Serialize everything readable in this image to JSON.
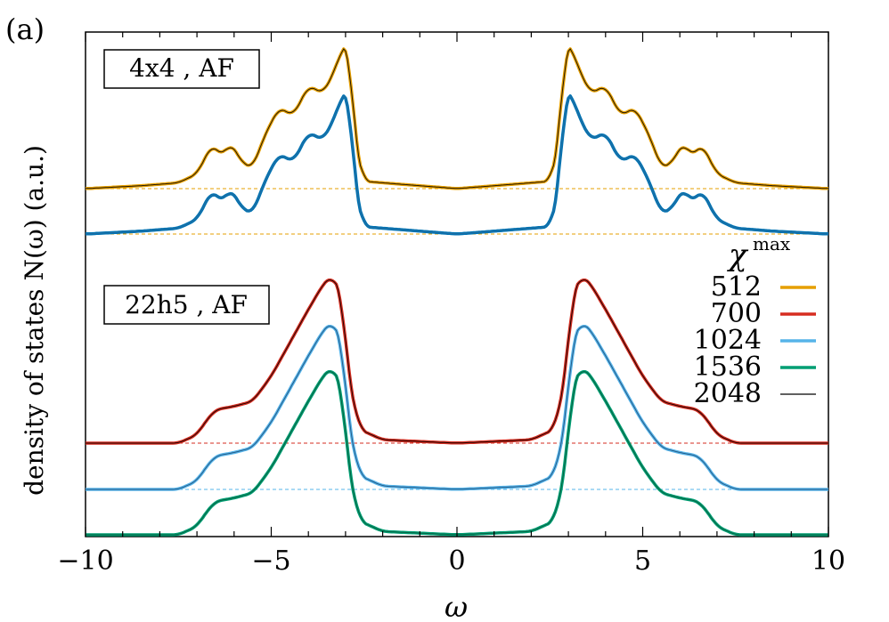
{
  "chart_data": {
    "type": "line",
    "panel_label": "(a)",
    "xlabel": "ω",
    "ylabel": "density of states N(ω) (a.u.)",
    "xlim": [
      -10,
      10
    ],
    "xticks": [
      -10,
      -5,
      0,
      5,
      10
    ],
    "xtick_labels": [
      "−10",
      "−5",
      "0",
      "5",
      "10"
    ],
    "grid": false,
    "legend": {
      "title": "χ",
      "title_sup": "max",
      "placement": "right",
      "entries": [
        {
          "label": "512",
          "color": "#E69F00"
        },
        {
          "label": "700",
          "color": "#D62D20"
        },
        {
          "label": "1024",
          "color": "#56B4E9"
        },
        {
          "label": "1536",
          "color": "#009E73"
        },
        {
          "label": "2048",
          "color": "#000000"
        }
      ]
    },
    "panels": [
      {
        "label": "4x4 , AF",
        "curves": [
          {
            "color": "#E69F00",
            "ref": "#000000",
            "line_color": "#E69F00",
            "baseline_offset": 1.0,
            "peak_pos": 2.85,
            "peak_height": 1.0,
            "gap_edge": 2.7,
            "points": [
              [
                -10,
                0.0
              ],
              [
                -8.5,
                0.02
              ],
              [
                -7.5,
                0.04
              ],
              [
                -7,
                0.1
              ],
              [
                -6.6,
                0.3
              ],
              [
                -6.3,
                0.22
              ],
              [
                -6.1,
                0.32
              ],
              [
                -5.8,
                0.18
              ],
              [
                -5.5,
                0.14
              ],
              [
                -5.2,
                0.35
              ],
              [
                -4.8,
                0.55
              ],
              [
                -4.4,
                0.5
              ],
              [
                -4.0,
                0.7
              ],
              [
                -3.6,
                0.65
              ],
              [
                -3.3,
                0.8
              ],
              [
                -3.1,
                0.95
              ],
              [
                -2.9,
                1.0
              ],
              [
                -2.75,
                0.3
              ],
              [
                -2.5,
                0.05
              ],
              [
                0,
                0.0
              ],
              [
                2.5,
                0.05
              ],
              [
                2.75,
                0.3
              ],
              [
                2.9,
                1.0
              ],
              [
                3.1,
                0.95
              ],
              [
                3.3,
                0.8
              ],
              [
                3.6,
                0.65
              ],
              [
                4.0,
                0.7
              ],
              [
                4.4,
                0.5
              ],
              [
                4.8,
                0.55
              ],
              [
                5.2,
                0.35
              ],
              [
                5.5,
                0.14
              ],
              [
                5.8,
                0.18
              ],
              [
                6.1,
                0.32
              ],
              [
                6.3,
                0.22
              ],
              [
                6.6,
                0.3
              ],
              [
                7,
                0.1
              ],
              [
                7.5,
                0.04
              ],
              [
                8.5,
                0.02
              ],
              [
                10,
                0.0
              ]
            ]
          },
          {
            "color": "#0072B2",
            "ref": "#000000",
            "line_color": "#2C6E9F",
            "baseline_offset": 0.0,
            "points": [
              [
                -10,
                0.0
              ],
              [
                -8.5,
                0.02
              ],
              [
                -7.5,
                0.04
              ],
              [
                -7,
                0.1
              ],
              [
                -6.6,
                0.3
              ],
              [
                -6.3,
                0.22
              ],
              [
                -6.1,
                0.32
              ],
              [
                -5.8,
                0.18
              ],
              [
                -5.5,
                0.14
              ],
              [
                -5.2,
                0.35
              ],
              [
                -4.8,
                0.55
              ],
              [
                -4.4,
                0.5
              ],
              [
                -4.0,
                0.7
              ],
              [
                -3.6,
                0.65
              ],
              [
                -3.3,
                0.8
              ],
              [
                -3.1,
                0.95
              ],
              [
                -2.9,
                1.0
              ],
              [
                -2.75,
                0.3
              ],
              [
                -2.5,
                0.05
              ],
              [
                0,
                0.0
              ],
              [
                2.5,
                0.05
              ],
              [
                2.75,
                0.3
              ],
              [
                2.9,
                1.0
              ],
              [
                3.1,
                0.95
              ],
              [
                3.3,
                0.8
              ],
              [
                3.6,
                0.65
              ],
              [
                4.0,
                0.7
              ],
              [
                4.4,
                0.5
              ],
              [
                4.8,
                0.55
              ],
              [
                5.2,
                0.35
              ],
              [
                5.5,
                0.14
              ],
              [
                5.8,
                0.18
              ],
              [
                6.1,
                0.32
              ],
              [
                6.3,
                0.22
              ],
              [
                6.6,
                0.3
              ],
              [
                7,
                0.1
              ],
              [
                7.5,
                0.04
              ],
              [
                8.5,
                0.02
              ],
              [
                10,
                0.0
              ]
            ]
          }
        ]
      },
      {
        "label": "22h5 , AF",
        "curves": [
          {
            "color": "#D62D20",
            "line_color": "#D62D20",
            "baseline_offset": 2.0,
            "points": [
              [
                -10,
                0.0
              ],
              [
                -7.5,
                0.0
              ],
              [
                -7,
                0.05
              ],
              [
                -6.8,
                0.12
              ],
              [
                -6.5,
                0.2
              ],
              [
                -6.0,
                0.22
              ],
              [
                -5.5,
                0.25
              ],
              [
                -5.0,
                0.4
              ],
              [
                -4.5,
                0.6
              ],
              [
                -4.0,
                0.8
              ],
              [
                -3.6,
                0.95
              ],
              [
                -3.4,
                1.0
              ],
              [
                -3.1,
                0.9
              ],
              [
                -2.95,
                0.45
              ],
              [
                -2.8,
                0.25
              ],
              [
                -2.6,
                0.08
              ],
              [
                -2.0,
                0.02
              ],
              [
                0,
                0.0
              ],
              [
                2.0,
                0.02
              ],
              [
                2.6,
                0.08
              ],
              [
                2.8,
                0.25
              ],
              [
                2.95,
                0.45
              ],
              [
                3.1,
                0.9
              ],
              [
                3.4,
                1.0
              ],
              [
                3.6,
                0.95
              ],
              [
                4.0,
                0.8
              ],
              [
                4.5,
                0.6
              ],
              [
                5.0,
                0.4
              ],
              [
                5.5,
                0.25
              ],
              [
                6.0,
                0.22
              ],
              [
                6.5,
                0.2
              ],
              [
                6.8,
                0.12
              ],
              [
                7,
                0.05
              ],
              [
                7.5,
                0.0
              ],
              [
                10,
                0.0
              ]
            ]
          },
          {
            "color": "#56B4E9",
            "line_color": "#1F4E79",
            "baseline_offset": 1.0,
            "points": [
              [
                -10,
                0.0
              ],
              [
                -7.5,
                0.0
              ],
              [
                -7,
                0.05
              ],
              [
                -6.8,
                0.12
              ],
              [
                -6.5,
                0.2
              ],
              [
                -6.0,
                0.22
              ],
              [
                -5.5,
                0.25
              ],
              [
                -5.0,
                0.4
              ],
              [
                -4.5,
                0.6
              ],
              [
                -4.0,
                0.8
              ],
              [
                -3.6,
                0.95
              ],
              [
                -3.4,
                1.0
              ],
              [
                -3.1,
                0.9
              ],
              [
                -2.95,
                0.45
              ],
              [
                -2.8,
                0.25
              ],
              [
                -2.6,
                0.08
              ],
              [
                -2.0,
                0.02
              ],
              [
                0,
                0.0
              ],
              [
                2.0,
                0.02
              ],
              [
                2.6,
                0.08
              ],
              [
                2.8,
                0.25
              ],
              [
                2.95,
                0.45
              ],
              [
                3.1,
                0.9
              ],
              [
                3.4,
                1.0
              ],
              [
                3.6,
                0.95
              ],
              [
                4.0,
                0.8
              ],
              [
                4.5,
                0.6
              ],
              [
                5.0,
                0.4
              ],
              [
                5.5,
                0.25
              ],
              [
                6.0,
                0.22
              ],
              [
                6.5,
                0.2
              ],
              [
                6.8,
                0.12
              ],
              [
                7,
                0.05
              ],
              [
                7.5,
                0.0
              ],
              [
                10,
                0.0
              ]
            ]
          },
          {
            "color": "#009E73",
            "line_color": "#0B5A3D",
            "baseline_offset": 0.0,
            "points": [
              [
                -10,
                0.0
              ],
              [
                -7.5,
                0.0
              ],
              [
                -7,
                0.05
              ],
              [
                -6.8,
                0.12
              ],
              [
                -6.5,
                0.2
              ],
              [
                -6.0,
                0.22
              ],
              [
                -5.5,
                0.25
              ],
              [
                -5.0,
                0.4
              ],
              [
                -4.5,
                0.6
              ],
              [
                -4.0,
                0.8
              ],
              [
                -3.6,
                0.95
              ],
              [
                -3.4,
                1.0
              ],
              [
                -3.1,
                0.9
              ],
              [
                -2.95,
                0.45
              ],
              [
                -2.8,
                0.25
              ],
              [
                -2.6,
                0.08
              ],
              [
                -2.0,
                0.02
              ],
              [
                0,
                0.0
              ],
              [
                2.0,
                0.02
              ],
              [
                2.6,
                0.08
              ],
              [
                2.8,
                0.25
              ],
              [
                2.95,
                0.45
              ],
              [
                3.1,
                0.9
              ],
              [
                3.4,
                1.0
              ],
              [
                3.6,
                0.95
              ],
              [
                4.0,
                0.8
              ],
              [
                4.5,
                0.6
              ],
              [
                5.0,
                0.4
              ],
              [
                5.5,
                0.25
              ],
              [
                6.0,
                0.22
              ],
              [
                6.5,
                0.2
              ],
              [
                6.8,
                0.12
              ],
              [
                7,
                0.05
              ],
              [
                7.5,
                0.0
              ],
              [
                10,
                0.0
              ]
            ]
          }
        ]
      }
    ]
  }
}
